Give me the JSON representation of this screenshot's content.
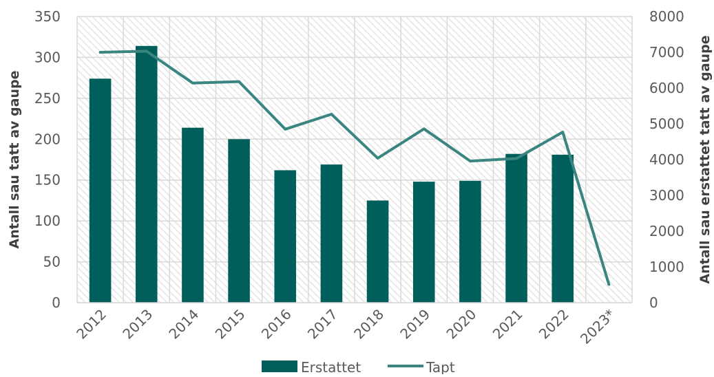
{
  "chart_data": {
    "type": "bar+line",
    "categories": [
      "2012",
      "2013",
      "2014",
      "2015",
      "2016",
      "2017",
      "2018",
      "2019",
      "2020",
      "2021",
      "2022",
      "2023*"
    ],
    "series": [
      {
        "name": "Erstattet",
        "kind": "bar",
        "axis": "left",
        "color": "#005f5a",
        "values": [
          274,
          314,
          214,
          200,
          162,
          169,
          125,
          148,
          149,
          182,
          181,
          null
        ]
      },
      {
        "name": "Tapt",
        "kind": "line",
        "axis": "right",
        "color": "#3a8580",
        "values": [
          7000,
          7030,
          6140,
          6180,
          4850,
          5270,
          4040,
          4860,
          3960,
          4030,
          4770,
          510
        ]
      }
    ],
    "ylabel_left": "Antall sau tatt av gaupe",
    "ylabel_right": "Antall sau erstattet tatt av gaupe",
    "ylim_left": [
      0,
      350
    ],
    "yticks_left": [
      0,
      50,
      100,
      150,
      200,
      250,
      300,
      350
    ],
    "ylim_right": [
      0,
      8000
    ],
    "yticks_right": [
      0,
      1000,
      2000,
      3000,
      4000,
      5000,
      6000,
      7000,
      8000
    ],
    "grid": true,
    "legend_position": "bottom",
    "colors": {
      "bar": "#005f5a",
      "line": "#3a8580",
      "grid": "#d9d9d9",
      "hatch": "#e2e2e2"
    }
  }
}
